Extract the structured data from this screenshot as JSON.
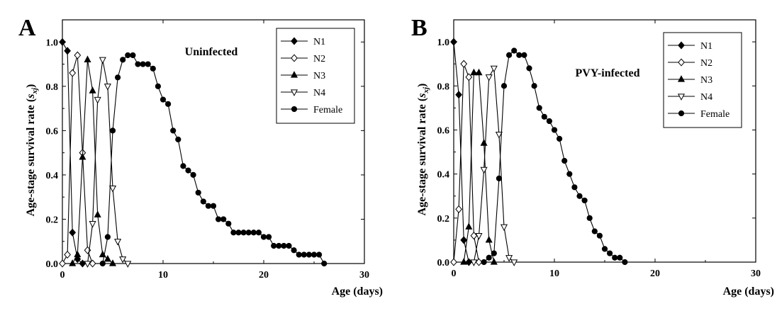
{
  "chart_data": [
    {
      "type": "line",
      "panel_label": "A",
      "condition_label": "Uninfected",
      "xlabel": "Age (days)",
      "ylabel": {
        "prefix": "Age-stage survival rate (",
        "symbol": "s",
        "subscript": "xj",
        "suffix": ")"
      },
      "xlim": [
        0,
        30
      ],
      "ylim": [
        0,
        1.1
      ],
      "xticks": [
        "0",
        "10",
        "20",
        "30"
      ],
      "yticks": [
        "0.0",
        "0.2",
        "0.4",
        "0.6",
        "0.8",
        "1.0"
      ],
      "legend_position": "top-right",
      "series": [
        {
          "name": "N1",
          "marker": "diamond-filled",
          "x": [
            0,
            0.5,
            1,
            1.5,
            2
          ],
          "y": [
            1.0,
            0.96,
            0.14,
            0.02,
            0.0
          ]
        },
        {
          "name": "N2",
          "marker": "diamond-open",
          "x": [
            0,
            0.5,
            1,
            1.5,
            2,
            2.5,
            3
          ],
          "y": [
            0.0,
            0.04,
            0.86,
            0.94,
            0.5,
            0.06,
            0.0
          ]
        },
        {
          "name": "N3",
          "marker": "triangle-up-filled",
          "x": [
            1,
            1.5,
            2,
            2.5,
            3,
            3.5,
            4,
            4.5,
            5
          ],
          "y": [
            0.0,
            0.04,
            0.48,
            0.92,
            0.78,
            0.22,
            0.04,
            0.02,
            0.0
          ]
        },
        {
          "name": "N4",
          "marker": "triangle-down-open",
          "x": [
            2.5,
            3,
            3.5,
            4,
            4.5,
            5,
            5.5,
            6,
            6.5
          ],
          "y": [
            0.0,
            0.18,
            0.74,
            0.92,
            0.8,
            0.34,
            0.1,
            0.02,
            0.0
          ]
        },
        {
          "name": "Female",
          "marker": "circle-filled",
          "x": [
            4,
            4.5,
            5,
            5.5,
            6,
            6.5,
            7,
            7.5,
            8,
            8.5,
            9,
            9.5,
            10,
            10.5,
            11,
            11.5,
            12,
            12.5,
            13,
            13.5,
            14,
            14.5,
            15,
            15.5,
            16,
            16.5,
            17,
            17.5,
            18,
            18.5,
            19,
            19.5,
            20,
            20.5,
            21,
            21.5,
            22,
            22.5,
            23,
            23.5,
            24,
            24.5,
            25,
            25.5,
            26
          ],
          "y": [
            0.0,
            0.12,
            0.6,
            0.84,
            0.92,
            0.94,
            0.94,
            0.9,
            0.9,
            0.9,
            0.88,
            0.8,
            0.74,
            0.72,
            0.6,
            0.56,
            0.44,
            0.42,
            0.4,
            0.32,
            0.28,
            0.26,
            0.26,
            0.2,
            0.2,
            0.18,
            0.14,
            0.14,
            0.14,
            0.14,
            0.14,
            0.14,
            0.12,
            0.12,
            0.08,
            0.08,
            0.08,
            0.08,
            0.06,
            0.04,
            0.04,
            0.04,
            0.04,
            0.04,
            0.0
          ]
        }
      ]
    },
    {
      "type": "line",
      "panel_label": "B",
      "condition_label": "PVY-infected",
      "xlabel": "Age (days)",
      "ylabel": {
        "prefix": "Age-stage survival rate (",
        "symbol": "s",
        "subscript": "xj",
        "suffix": ")"
      },
      "xlim": [
        0,
        30
      ],
      "ylim": [
        0,
        1.1
      ],
      "xticks": [
        "0",
        "10",
        "20",
        "30"
      ],
      "yticks": [
        "0.0",
        "0.2",
        "0.4",
        "0.6",
        "0.8",
        "1.0"
      ],
      "legend_position": "top-right",
      "series": [
        {
          "name": "N1",
          "marker": "diamond-filled",
          "x": [
            0,
            0.5,
            1,
            1.5
          ],
          "y": [
            1.0,
            0.76,
            0.1,
            0.0
          ]
        },
        {
          "name": "N2",
          "marker": "diamond-open",
          "x": [
            0,
            0.5,
            1,
            1.5,
            2,
            2.5
          ],
          "y": [
            0.0,
            0.24,
            0.9,
            0.84,
            0.12,
            0.0
          ]
        },
        {
          "name": "N3",
          "marker": "triangle-up-filled",
          "x": [
            1,
            1.5,
            2,
            2.5,
            3,
            3.5,
            4
          ],
          "y": [
            0.0,
            0.16,
            0.86,
            0.86,
            0.54,
            0.1,
            0.0
          ]
        },
        {
          "name": "N4",
          "marker": "triangle-down-open",
          "x": [
            2,
            2.5,
            3,
            3.5,
            4,
            4.5,
            5,
            5.5,
            6
          ],
          "y": [
            0.0,
            0.12,
            0.42,
            0.84,
            0.88,
            0.58,
            0.16,
            0.02,
            0.0
          ]
        },
        {
          "name": "Female",
          "marker": "circle-filled",
          "x": [
            3,
            3.5,
            4,
            4.5,
            5,
            5.5,
            6,
            6.5,
            7,
            7.5,
            8,
            8.5,
            9,
            9.5,
            10,
            10.5,
            11,
            11.5,
            12,
            12.5,
            13,
            13.5,
            14,
            14.5,
            15,
            15.5,
            16,
            16.5,
            17
          ],
          "y": [
            0.0,
            0.02,
            0.04,
            0.38,
            0.8,
            0.94,
            0.96,
            0.94,
            0.94,
            0.88,
            0.8,
            0.7,
            0.66,
            0.64,
            0.6,
            0.56,
            0.46,
            0.4,
            0.34,
            0.3,
            0.28,
            0.2,
            0.14,
            0.12,
            0.06,
            0.04,
            0.02,
            0.02,
            0.0
          ]
        }
      ]
    }
  ]
}
